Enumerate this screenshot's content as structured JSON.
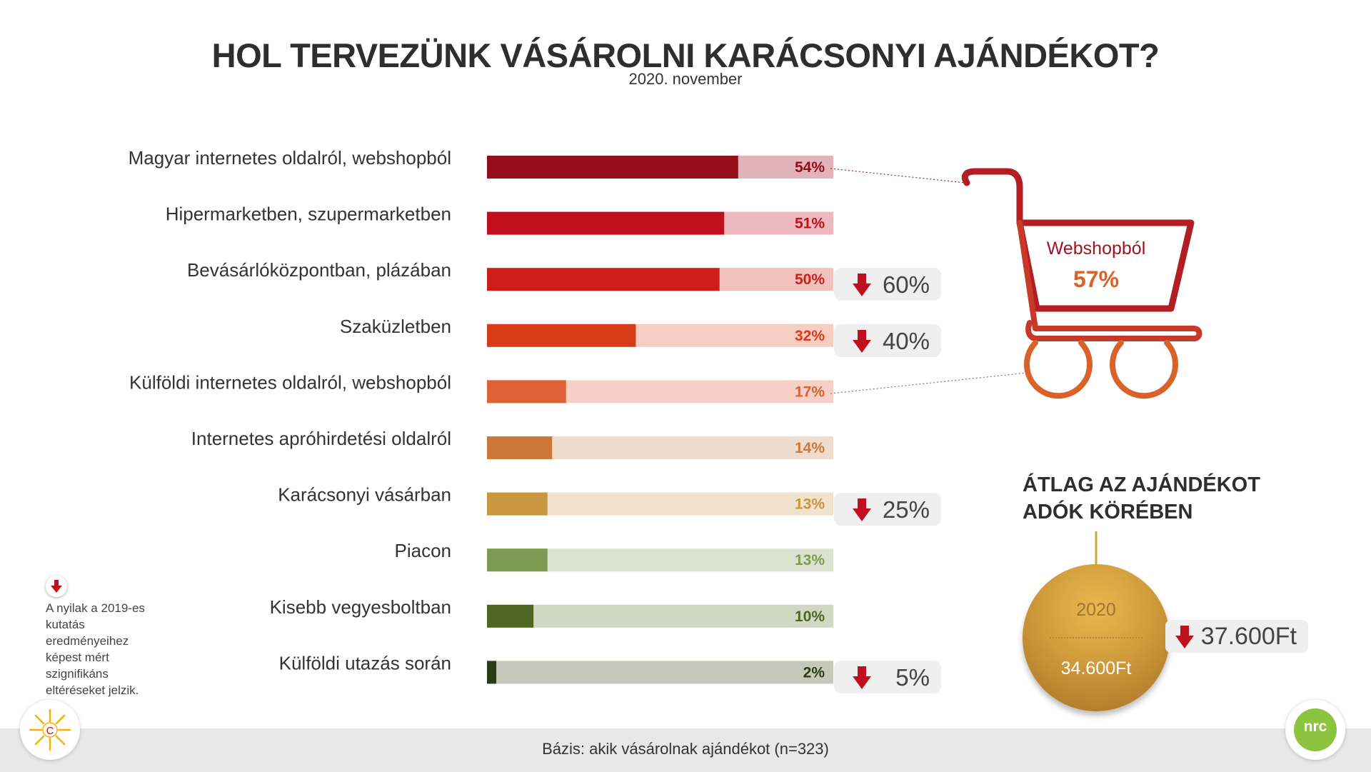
{
  "title": "HOL TERVEZÜNK VÁSÁROLNI KARÁCSONYI AJÁNDÉKOT?",
  "subtitle": "2020. november",
  "chart_data": {
    "type": "bar",
    "orientation": "horizontal",
    "xlim": [
      0,
      100
    ],
    "categories": [
      "Magyar internetes oldalról, webshopból",
      "Hipermarketben, szupermarketben",
      "Bevásárlóközpontban, plázában",
      "Szaküzletben",
      "Külföldi internetes oldalról, webshopból",
      "Internetes apróhirdetési oldalról",
      "Karácsonyi vásárban",
      "Piacon",
      "Kisebb vegyesboltban",
      "Külföldi utazás során"
    ],
    "values": [
      54,
      51,
      50,
      32,
      17,
      14,
      13,
      13,
      10,
      2
    ],
    "value_labels": [
      "54%",
      "51%",
      "50%",
      "32%",
      "17%",
      "14%",
      "13%",
      "13%",
      "10%",
      "2%"
    ],
    "bar_colors": [
      "#950c1b",
      "#c0101e",
      "#cc1f1a",
      "#d93b18",
      "#dd6136",
      "#cc7838",
      "#c8963f",
      "#7d9a52",
      "#4e6622",
      "#2b3b14"
    ],
    "track_colors": [
      "#e0b4b8",
      "#ebb8bc",
      "#f1c1bd",
      "#f6cdc3",
      "#f6d0c5",
      "#f0dccc",
      "#f0e2cc",
      "#dbe3d0",
      "#d0d7c3",
      "#c6c9ba"
    ],
    "label_colors": [
      "#950c1b",
      "#c0101e",
      "#cc1f1a",
      "#d93b18",
      "#dd6136",
      "#cc7838",
      "#c8963f",
      "#7d9a52",
      "#4e6622",
      "#2b3b14"
    ],
    "changes_2019": [
      null,
      null,
      "60%",
      "40%",
      null,
      null,
      "25%",
      null,
      null,
      "5%"
    ]
  },
  "cart": {
    "label": "Webshopból",
    "value": "57%"
  },
  "average": {
    "title_line1": "ÁTLAG AZ AJÁNDÉKOT",
    "title_line2": "ADÓK KÖRÉBEN",
    "year": "2020",
    "value": "34.600Ft",
    "previous": "37.600Ft"
  },
  "legend": {
    "text": "A nyilak a 2019-es kutatás eredményeihez képest mért szignifikáns eltéréseket jelzik."
  },
  "footer": {
    "base": "Bázis: akik vásárolnak ajándékot (n=323)"
  },
  "logos": {
    "left": "C",
    "right": "nrc"
  },
  "colors": {
    "arrow": "#c0101e",
    "cart": "#b21e24",
    "cart_wheels": "#d9622b"
  }
}
